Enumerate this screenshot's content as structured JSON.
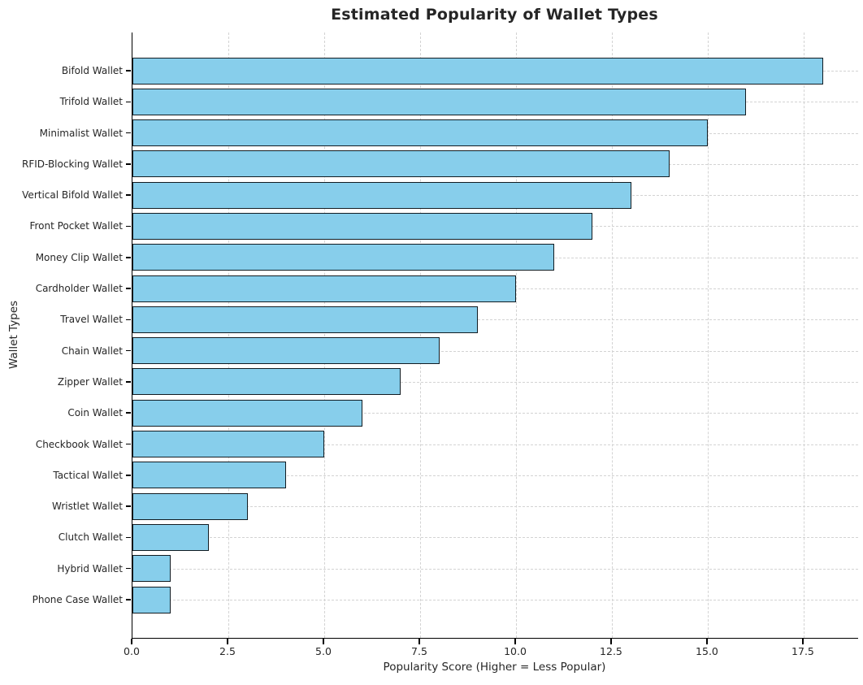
{
  "chart_data": {
    "type": "bar",
    "orientation": "horizontal",
    "title": "Estimated Popularity of Wallet Types",
    "xlabel": "Popularity Score (Higher = Less Popular)",
    "ylabel": "Wallet Types",
    "categories": [
      "Bifold Wallet",
      "Trifold Wallet",
      "Minimalist Wallet",
      "RFID-Blocking Wallet",
      "Vertical Bifold Wallet",
      "Front Pocket Wallet",
      "Money Clip Wallet",
      "Cardholder Wallet",
      "Travel Wallet",
      "Chain Wallet",
      "Zipper Wallet",
      "Coin Wallet",
      "Checkbook Wallet",
      "Tactical Wallet",
      "Wristlet Wallet",
      "Clutch Wallet",
      "Hybrid Wallet",
      "Phone Case Wallet"
    ],
    "values": [
      18,
      16,
      15,
      14,
      13,
      12,
      11,
      10,
      9,
      8,
      7,
      6,
      5,
      4,
      3,
      2,
      1,
      1
    ],
    "xlim": [
      0,
      18.92
    ],
    "xticks": [
      0,
      2.5,
      5,
      7.5,
      10,
      12.5,
      15,
      17.5
    ],
    "xtick_labels": [
      "0.0",
      "2.5",
      "5.0",
      "7.5",
      "10.0",
      "12.5",
      "15.0",
      "17.5"
    ],
    "grid": true,
    "legend": null,
    "colors": {
      "bar_fill": "#87CEEB",
      "bar_edge": "#121c22",
      "grid": "#d3d3d3",
      "spine": "#000000",
      "text": "#262626",
      "background": "#ffffff"
    }
  }
}
